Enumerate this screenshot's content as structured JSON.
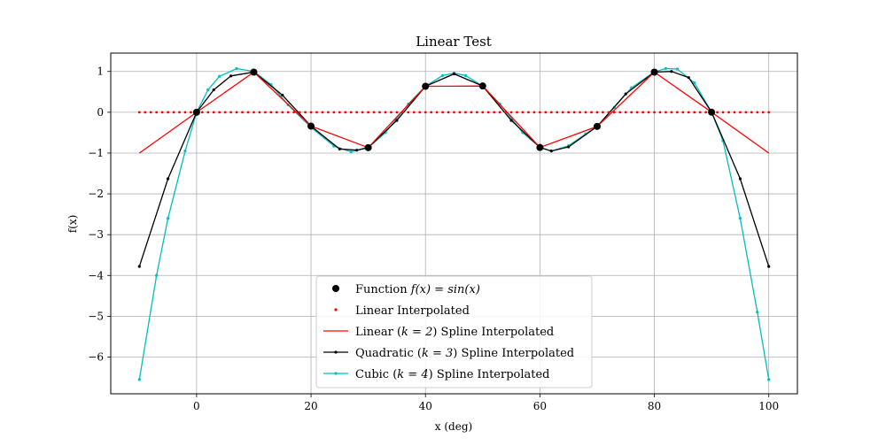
{
  "chart_data": {
    "type": "line",
    "title": "Linear Test",
    "xlabel": "x (deg)",
    "ylabel": "f(x)",
    "xlim": [
      -15,
      105
    ],
    "ylim": [
      -6.9,
      1.45
    ],
    "xticks": [
      0,
      20,
      40,
      60,
      80,
      100
    ],
    "yticks": [
      1,
      0,
      -1,
      -2,
      -3,
      -4,
      -5,
      -6
    ],
    "xtick_labels": [
      "0",
      "20",
      "40",
      "60",
      "80",
      "100"
    ],
    "ytick_labels": [
      "1",
      "0",
      "−1",
      "−2",
      "−3",
      "−4",
      "−5",
      "−6"
    ],
    "grid": true,
    "legend_position": "bottom-center",
    "series": [
      {
        "name": "Function f(x) = sin(x)",
        "legend_parts": {
          "pre": "Function ",
          "math": "f(x) = sin(x)",
          "post": ""
        },
        "kind": "markers",
        "color": "#000000",
        "x": [
          0,
          10,
          20,
          30,
          40,
          50,
          60,
          70,
          80,
          90
        ],
        "y": [
          0,
          0.984,
          -0.34,
          -0.867,
          0.637,
          0.644,
          -0.863,
          -0.347,
          0.984,
          0.003
        ]
      },
      {
        "name": "Linear Interpolated",
        "legend_parts": {
          "pre": "Linear Interpolated",
          "math": "",
          "post": ""
        },
        "kind": "dots",
        "color": "#ff0000",
        "x_range": [
          -10,
          100,
          1
        ],
        "constant_y": 0
      },
      {
        "name": "Linear (k = 2) Spline Interpolated",
        "legend_parts": {
          "pre": "Linear (",
          "math": "k = 2",
          "post": ") Spline Interpolated"
        },
        "kind": "line",
        "color": "#ff0000",
        "x": [
          -10,
          0,
          10,
          20,
          30,
          40,
          50,
          60,
          70,
          80,
          90,
          100
        ],
        "y": [
          -1.0,
          0,
          0.984,
          -0.34,
          -0.867,
          0.637,
          0.644,
          -0.863,
          -0.347,
          0.984,
          0.003,
          -1.0
        ]
      },
      {
        "name": "Quadratic (k = 3) Spline Interpolated",
        "legend_parts": {
          "pre": "Quadratic (",
          "math": "k = 3",
          "post": ") Spline Interpolated"
        },
        "kind": "line-dots",
        "color": "#000000",
        "x": [
          -10,
          -5,
          0,
          3,
          6,
          10,
          15,
          20,
          25,
          28,
          30,
          35,
          40,
          45,
          50,
          55,
          60,
          62,
          65,
          70,
          75,
          80,
          83,
          86,
          90,
          95,
          100
        ],
        "y": [
          -3.78,
          -1.63,
          0,
          0.55,
          0.89,
          0.984,
          0.42,
          -0.34,
          -0.9,
          -0.93,
          -0.867,
          -0.2,
          0.637,
          0.94,
          0.644,
          -0.2,
          -0.863,
          -0.95,
          -0.85,
          -0.347,
          0.45,
          0.984,
          1.0,
          0.85,
          0.003,
          -1.63,
          -3.78
        ]
      },
      {
        "name": "Cubic (k = 4) Spline Interpolated",
        "legend_parts": {
          "pre": "Cubic (",
          "math": "k = 4",
          "post": ") Spline Interpolated"
        },
        "kind": "line-dots",
        "color": "#00bfbf",
        "x": [
          -10,
          -7,
          -5,
          -2,
          0,
          2,
          4,
          7,
          10,
          13,
          16,
          20,
          24,
          27,
          30,
          33,
          37,
          40,
          43,
          45,
          47,
          50,
          53,
          57,
          60,
          62,
          65,
          68,
          70,
          73,
          76,
          80,
          82,
          84,
          87,
          90,
          92,
          95,
          98,
          100
        ],
        "y": [
          -6.55,
          -4.0,
          -2.6,
          -0.95,
          0,
          0.55,
          0.88,
          1.07,
          1.0,
          0.68,
          0.18,
          -0.37,
          -0.83,
          -0.97,
          -0.867,
          -0.5,
          0.2,
          0.637,
          0.9,
          0.96,
          0.9,
          0.644,
          0.2,
          -0.5,
          -0.863,
          -0.95,
          -0.82,
          -0.53,
          -0.347,
          0.12,
          0.6,
          0.99,
          1.07,
          1.06,
          0.72,
          0.003,
          -0.7,
          -2.6,
          -4.9,
          -6.55
        ]
      }
    ]
  }
}
